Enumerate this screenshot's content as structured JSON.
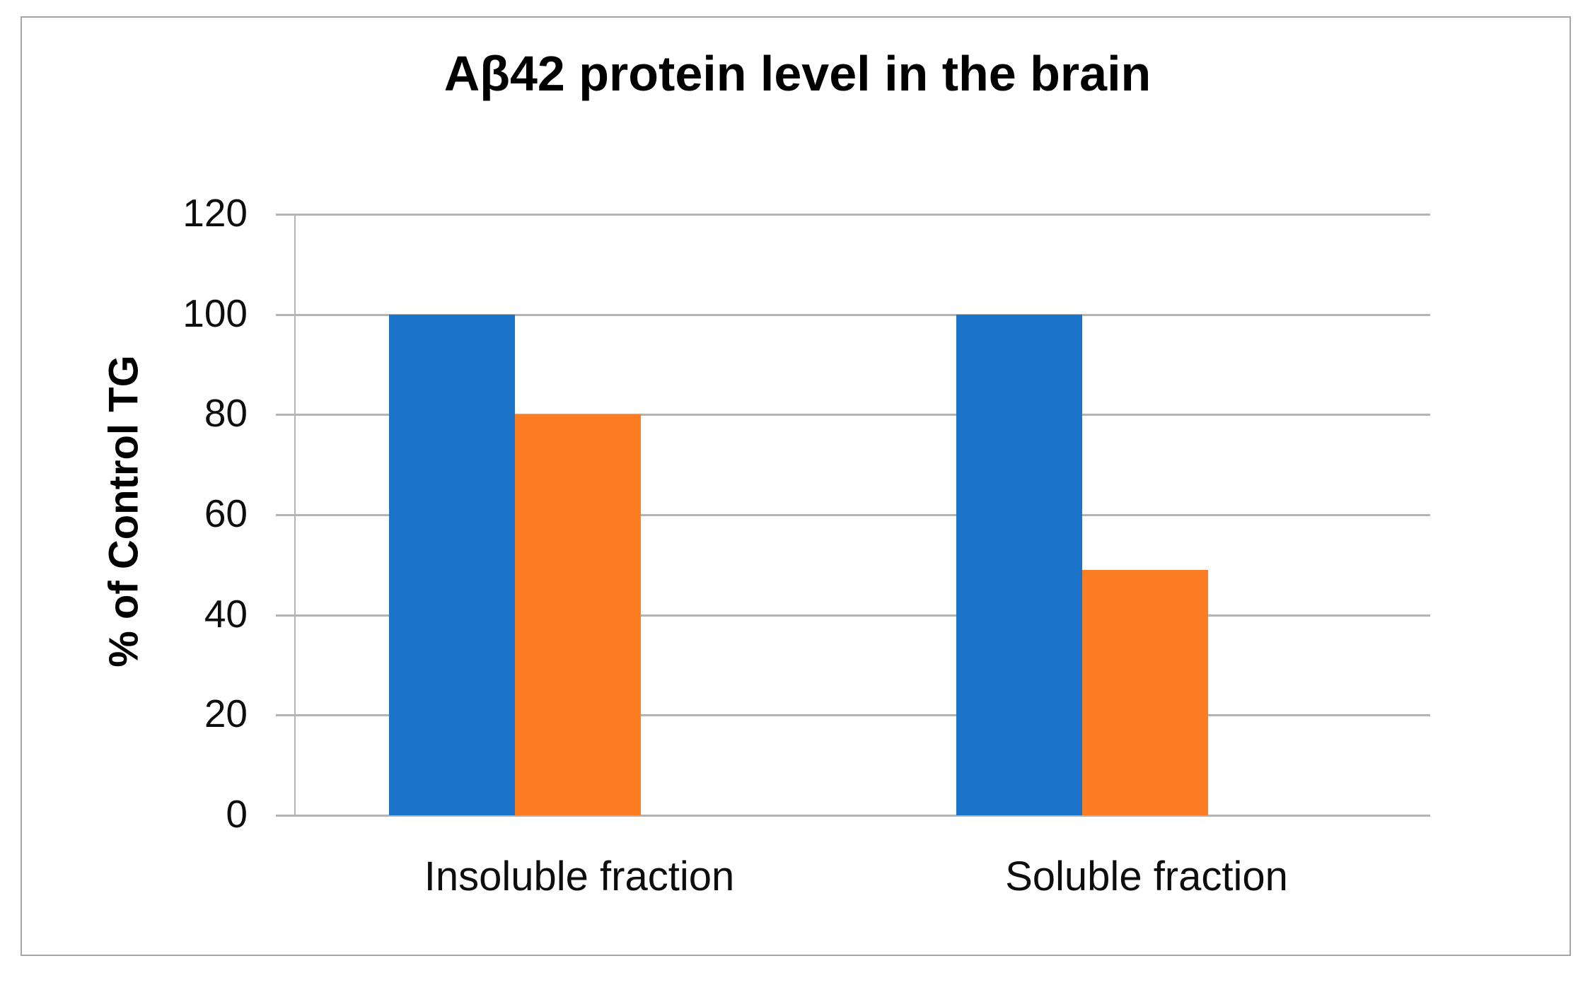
{
  "page": {
    "background_color": "#ffffff",
    "border_color": "#a6a6a6"
  },
  "chart_data": {
    "type": "bar",
    "title": "Aβ42 protein level in the brain",
    "ylabel": "% of Control TG",
    "xlabel": "",
    "categories": [
      "Insoluble fraction",
      "Soluble fraction"
    ],
    "series": [
      {
        "color": "#1b73c8",
        "values": [
          100,
          100
        ]
      },
      {
        "color": "#fc7d24",
        "values": [
          80,
          49
        ]
      }
    ],
    "ylim": [
      0,
      120
    ],
    "yticks": [
      0,
      20,
      40,
      60,
      80,
      100,
      120
    ],
    "grid": true,
    "legend": false,
    "gridline_color": "#b3b3b3",
    "axis_color": "#b3b3b3",
    "text_color": "#000000"
  }
}
